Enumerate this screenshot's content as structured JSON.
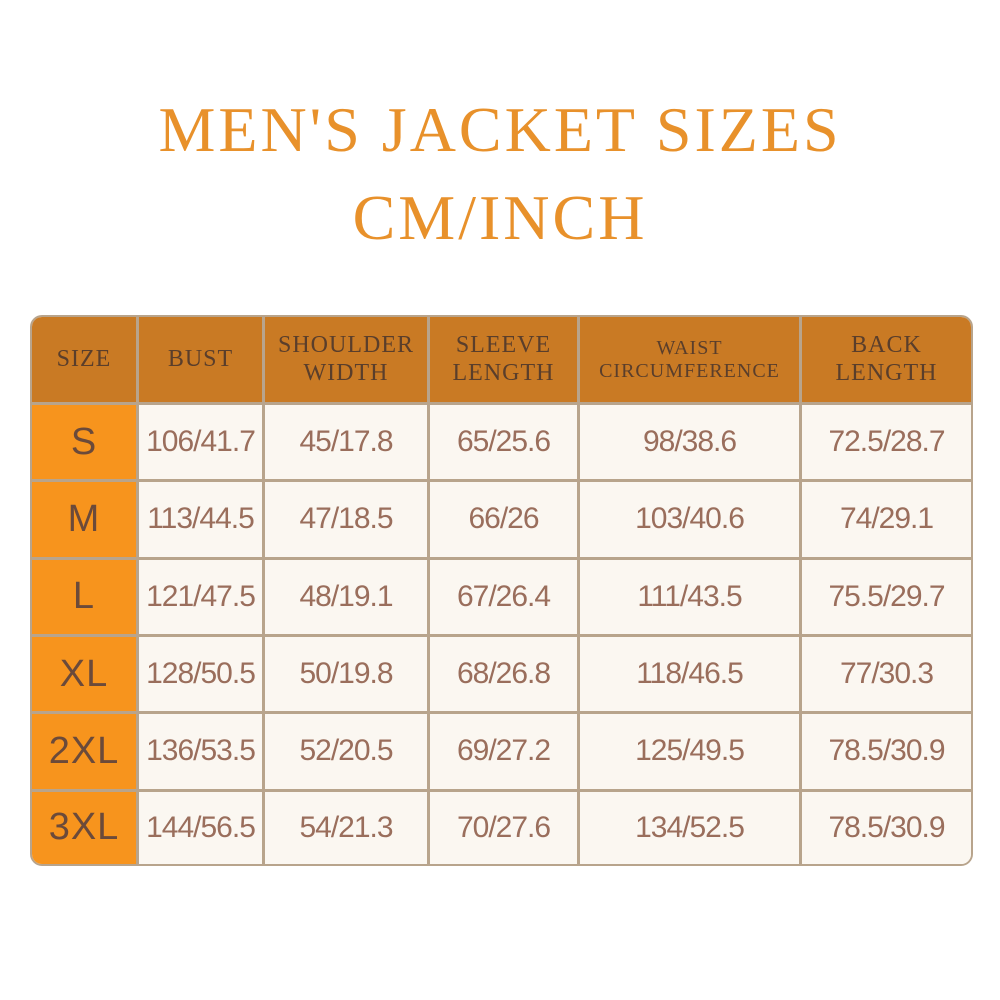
{
  "title": {
    "line1": "MEN'S JACKET SIZES",
    "line2": "CM/INCH"
  },
  "colors": {
    "title": "#E8912B",
    "header_bg": "#C97A24",
    "size_col_bg": "#F7941D",
    "cell_bg": "#FBF7F1",
    "border": "#B8A48C"
  },
  "table": {
    "headers": [
      "SIZE",
      "BUST",
      "SHOULDER WIDTH",
      "SLEEVE LENGTH",
      "WAIST CIRCUMFERENCE",
      "BACK LENGTH"
    ],
    "rows": [
      [
        "S",
        "106/41.7",
        "45/17.8",
        "65/25.6",
        "98/38.6",
        "72.5/28.7"
      ],
      [
        "M",
        "113/44.5",
        "47/18.5",
        "66/26",
        "103/40.6",
        "74/29.1"
      ],
      [
        "L",
        "121/47.5",
        "48/19.1",
        "67/26.4",
        "111/43.5",
        "75.5/29.7"
      ],
      [
        "XL",
        "128/50.5",
        "50/19.8",
        "68/26.8",
        "118/46.5",
        "77/30.3"
      ],
      [
        "2XL",
        "136/53.5",
        "52/20.5",
        "69/27.2",
        "125/49.5",
        "78.5/30.9"
      ],
      [
        "3XL",
        "144/56.5",
        "54/21.3",
        "70/27.6",
        "134/52.5",
        "78.5/30.9"
      ]
    ]
  }
}
